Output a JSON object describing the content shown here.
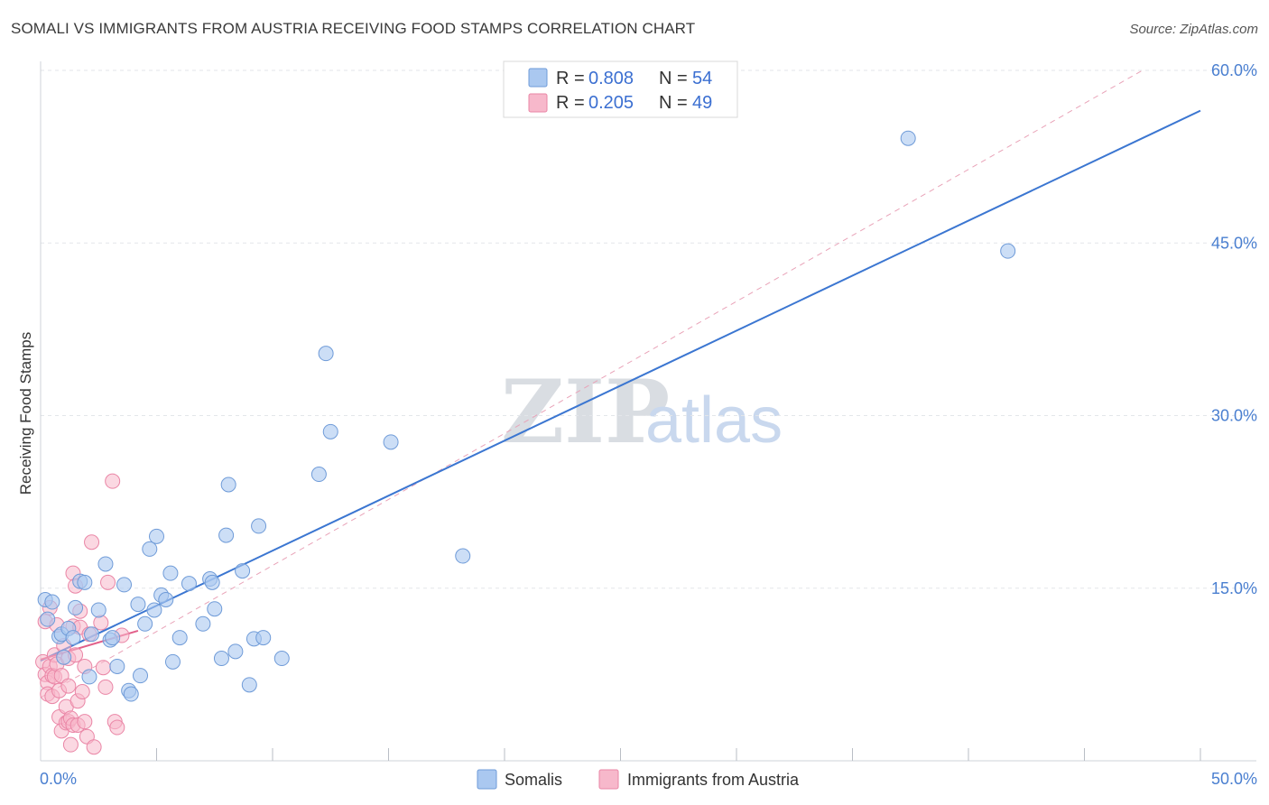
{
  "header": {
    "title": "SOMALI VS IMMIGRANTS FROM AUSTRIA RECEIVING FOOD STAMPS CORRELATION CHART",
    "source": "Source: ZipAtlas.com"
  },
  "watermark": {
    "zip": "ZIP",
    "atlas": "atlas"
  },
  "colors": {
    "blue_fill": "#aac8f0",
    "blue_stroke": "#6f9bd8",
    "blue_line": "#3b76d1",
    "pink_fill": "#f7b8cb",
    "pink_stroke": "#ea86a6",
    "pink_line": "#e2608a",
    "grid": "#e3e6ea",
    "axis_label": "#4a7fd0"
  },
  "legend": {
    "rows": [
      {
        "r_label": "R = ",
        "r_value": "0.808",
        "n_label": "N = ",
        "n_value": "54"
      },
      {
        "r_label": "R = ",
        "r_value": "0.205",
        "n_label": "N = ",
        "n_value": "49"
      }
    ]
  },
  "bottom_legend": [
    "Somalis",
    "Immigrants from Austria"
  ],
  "chart_data": {
    "type": "scatter",
    "title": "SOMALI VS IMMIGRANTS FROM AUSTRIA RECEIVING FOOD STAMPS CORRELATION CHART",
    "xlabel": "",
    "ylabel": "Receiving Food Stamps",
    "xlim": [
      0,
      50
    ],
    "ylim": [
      0,
      60
    ],
    "x_tick_labels": [
      "0.0%",
      "50.0%"
    ],
    "y_ticks": [
      15,
      30,
      45,
      60
    ],
    "y_tick_labels": [
      "15.0%",
      "30.0%",
      "45.0%",
      "60.0%"
    ],
    "grid": true,
    "series": [
      {
        "name": "Somalis",
        "r": 0.808,
        "n": 54,
        "trend": {
          "x": [
            0,
            50
          ],
          "y": [
            8.7,
            56.5
          ]
        },
        "points": [
          [
            0.2,
            14.0
          ],
          [
            0.3,
            12.3
          ],
          [
            0.5,
            13.8
          ],
          [
            0.8,
            10.8
          ],
          [
            0.9,
            11.0
          ],
          [
            1.0,
            9.0
          ],
          [
            1.2,
            11.5
          ],
          [
            1.4,
            10.7
          ],
          [
            1.5,
            13.3
          ],
          [
            1.7,
            15.6
          ],
          [
            1.9,
            15.5
          ],
          [
            2.1,
            7.3
          ],
          [
            2.2,
            11.0
          ],
          [
            2.5,
            13.1
          ],
          [
            2.8,
            17.1
          ],
          [
            3.0,
            10.5
          ],
          [
            3.1,
            10.7
          ],
          [
            3.3,
            8.2
          ],
          [
            3.6,
            15.3
          ],
          [
            3.8,
            6.1
          ],
          [
            3.9,
            5.8
          ],
          [
            4.2,
            13.6
          ],
          [
            4.3,
            7.4
          ],
          [
            4.5,
            11.9
          ],
          [
            4.7,
            18.4
          ],
          [
            4.9,
            13.1
          ],
          [
            5.0,
            19.5
          ],
          [
            5.2,
            14.4
          ],
          [
            5.4,
            14.0
          ],
          [
            5.6,
            16.3
          ],
          [
            5.7,
            8.6
          ],
          [
            6.0,
            10.7
          ],
          [
            6.4,
            15.4
          ],
          [
            7.0,
            11.9
          ],
          [
            7.3,
            15.8
          ],
          [
            7.4,
            15.5
          ],
          [
            7.5,
            13.2
          ],
          [
            7.8,
            8.9
          ],
          [
            8.0,
            19.6
          ],
          [
            8.1,
            24.0
          ],
          [
            8.4,
            9.5
          ],
          [
            8.7,
            16.5
          ],
          [
            9.0,
            6.6
          ],
          [
            9.2,
            10.6
          ],
          [
            9.4,
            20.4
          ],
          [
            9.6,
            10.7
          ],
          [
            10.4,
            8.9
          ],
          [
            12.0,
            24.9
          ],
          [
            12.3,
            35.4
          ],
          [
            12.5,
            28.6
          ],
          [
            15.1,
            27.7
          ],
          [
            18.2,
            17.8
          ],
          [
            37.4,
            54.1
          ],
          [
            41.7,
            44.3
          ]
        ]
      },
      {
        "name": "Immigrants from Austria",
        "r": 0.205,
        "n": 49,
        "trend": {
          "x": [
            0,
            4.2
          ],
          "y": [
            8.8,
            11.3
          ]
        },
        "trend_dashed": {
          "x": [
            0,
            47.5
          ],
          "y": [
            5.5,
            60.0
          ]
        },
        "points": [
          [
            0.1,
            8.6
          ],
          [
            0.2,
            7.5
          ],
          [
            0.2,
            12.1
          ],
          [
            0.3,
            6.8
          ],
          [
            0.3,
            5.8
          ],
          [
            0.4,
            13.3
          ],
          [
            0.4,
            8.2
          ],
          [
            0.5,
            7.4
          ],
          [
            0.5,
            5.6
          ],
          [
            0.6,
            9.2
          ],
          [
            0.6,
            7.3
          ],
          [
            0.7,
            11.8
          ],
          [
            0.7,
            8.4
          ],
          [
            0.8,
            6.1
          ],
          [
            0.8,
            3.8
          ],
          [
            0.9,
            7.4
          ],
          [
            0.9,
            2.6
          ],
          [
            1.0,
            10.0
          ],
          [
            1.1,
            4.7
          ],
          [
            1.1,
            3.3
          ],
          [
            1.2,
            8.9
          ],
          [
            1.2,
            6.5
          ],
          [
            1.2,
            3.4
          ],
          [
            1.3,
            3.7
          ],
          [
            1.3,
            1.4
          ],
          [
            1.4,
            16.3
          ],
          [
            1.4,
            11.7
          ],
          [
            1.4,
            3.1
          ],
          [
            1.5,
            15.2
          ],
          [
            1.5,
            9.2
          ],
          [
            1.6,
            3.1
          ],
          [
            1.6,
            5.2
          ],
          [
            1.7,
            13.0
          ],
          [
            1.7,
            11.6
          ],
          [
            1.8,
            6.0
          ],
          [
            1.9,
            8.2
          ],
          [
            1.9,
            3.4
          ],
          [
            2.0,
            2.1
          ],
          [
            2.1,
            11.0
          ],
          [
            2.2,
            19.0
          ],
          [
            2.3,
            1.2
          ],
          [
            2.6,
            12.0
          ],
          [
            2.7,
            8.1
          ],
          [
            2.8,
            6.4
          ],
          [
            2.9,
            15.5
          ],
          [
            3.1,
            24.3
          ],
          [
            3.2,
            3.4
          ],
          [
            3.3,
            2.9
          ],
          [
            3.5,
            10.9
          ]
        ]
      }
    ]
  }
}
